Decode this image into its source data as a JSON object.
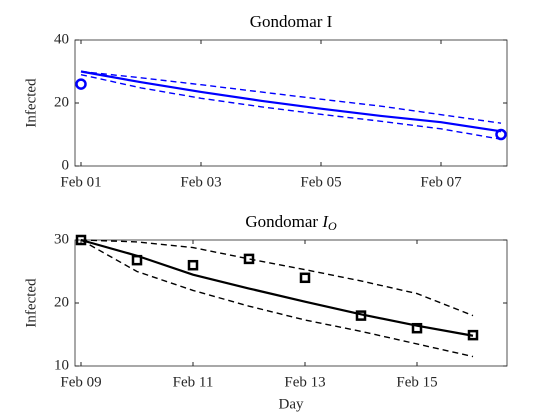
{
  "chart_data": [
    {
      "type": "line",
      "title": "Gondomar I",
      "ylabel": "Infected",
      "categories": [
        "Feb 01",
        null,
        "Feb 03",
        null,
        "Feb 05",
        null,
        "Feb 07",
        null
      ],
      "ylim": [
        0,
        40
      ],
      "yticks": [
        0,
        20,
        40
      ],
      "series": [
        {
          "color": "#0000ff",
          "style": "solid",
          "values": [
            30,
            26.6,
            23.5,
            20.7,
            18.2,
            15.9,
            13.9,
            11
          ]
        },
        {
          "color": "#0000ff",
          "style": "dashed",
          "values": [
            30,
            28,
            25.8,
            23.5,
            21.2,
            19,
            16.3,
            13.6
          ]
        },
        {
          "color": "#0000ff",
          "style": "dashed",
          "values": [
            29,
            24.8,
            21.5,
            18.8,
            16.4,
            14.2,
            11.8,
            8.5
          ]
        },
        {
          "color": "#0000ff",
          "style": "circle",
          "values": [
            26,
            null,
            null,
            null,
            null,
            null,
            null,
            10
          ]
        }
      ]
    },
    {
      "type": "line",
      "title": "Gondomar",
      "title_var": "I",
      "title_sub": "O",
      "ylabel": "Infected",
      "xlabel": "Day",
      "categories": [
        "Feb 09",
        null,
        "Feb 11",
        null,
        "Feb 13",
        null,
        "Feb 15",
        null
      ],
      "ylim": [
        10,
        30
      ],
      "yticks": [
        10,
        20,
        30
      ],
      "series": [
        {
          "color": "#000000",
          "style": "solid",
          "values": [
            30,
            27.5,
            24.5,
            22.3,
            20.2,
            18.2,
            16.4,
            14.8
          ]
        },
        {
          "color": "#000000",
          "style": "dashed",
          "values": [
            30,
            29.7,
            28.8,
            27,
            25.3,
            23.5,
            21.5,
            18
          ]
        },
        {
          "color": "#000000",
          "style": "dashed",
          "values": [
            30,
            25,
            22,
            19.5,
            17.3,
            15.5,
            13.5,
            11.5
          ]
        },
        {
          "color": "#000000",
          "style": "square",
          "values": [
            30,
            26.8,
            26,
            27,
            24,
            18,
            16,
            14.9
          ]
        }
      ]
    }
  ]
}
